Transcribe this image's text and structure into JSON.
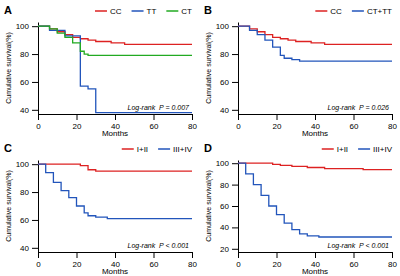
{
  "chart_data": [
    {
      "type": "step",
      "title": "A",
      "xlabel": "Months",
      "ylabel": "Cumulative survival(%)",
      "annotations": [
        "Log-rank  P = 0.007"
      ],
      "xlim": [
        0,
        80
      ],
      "ylim": [
        37,
        103
      ],
      "xticks": [
        0,
        20,
        40,
        60,
        80
      ],
      "yticks": [
        40,
        60,
        80,
        100
      ],
      "grid": false,
      "legend": "top",
      "series": [
        {
          "name": "CC",
          "color": "#dd2222",
          "x": [
            0,
            6,
            10,
            14,
            18,
            22,
            26,
            30,
            34,
            38,
            45,
            55,
            65,
            80
          ],
          "values": [
            100,
            98,
            96,
            94,
            92,
            91,
            90,
            89,
            89,
            88,
            87,
            87,
            87,
            87
          ]
        },
        {
          "name": "TT",
          "color": "#2255bb",
          "x": [
            0,
            6,
            14,
            22,
            26,
            30,
            35,
            42,
            80
          ],
          "values": [
            100,
            97,
            93,
            57,
            55,
            38,
            38,
            38,
            38
          ]
        },
        {
          "name": "CT",
          "color": "#22aa22",
          "x": [
            0,
            6,
            10,
            14,
            18,
            22,
            24,
            26,
            34,
            80
          ],
          "values": [
            100,
            98,
            95,
            92,
            88,
            82,
            80,
            79,
            79,
            79
          ]
        }
      ]
    },
    {
      "type": "step",
      "title": "B",
      "xlabel": "Months",
      "ylabel": "Cumulative survival(%)",
      "annotations": [
        "Log-rank  P = 0.026"
      ],
      "xlim": [
        0,
        80
      ],
      "ylim": [
        37,
        103
      ],
      "xticks": [
        0,
        20,
        40,
        60,
        80
      ],
      "yticks": [
        40,
        60,
        80,
        100
      ],
      "grid": false,
      "legend": "top",
      "series": [
        {
          "name": "CC",
          "color": "#dd2222",
          "x": [
            0,
            6,
            10,
            14,
            18,
            22,
            26,
            30,
            34,
            38,
            45,
            55,
            65,
            80
          ],
          "values": [
            100,
            98,
            96,
            94,
            92,
            91,
            90,
            89,
            89,
            88,
            87,
            87,
            87,
            87
          ]
        },
        {
          "name": "CT+TT",
          "color": "#2255bb",
          "x": [
            0,
            6,
            10,
            14,
            18,
            22,
            24,
            28,
            32,
            36,
            42,
            80
          ],
          "values": [
            100,
            97,
            94,
            90,
            85,
            79,
            77,
            76,
            75,
            75,
            75,
            75
          ]
        }
      ]
    },
    {
      "type": "step",
      "title": "C",
      "xlabel": "Months",
      "ylabel": "Cumulative survival(%)",
      "annotations": [
        "Log-rank  P < 0.001"
      ],
      "xlim": [
        0,
        80
      ],
      "ylim": [
        37,
        103
      ],
      "xticks": [
        0,
        20,
        40,
        60,
        80
      ],
      "yticks": [
        40,
        60,
        80,
        100
      ],
      "grid": false,
      "legend": "top",
      "series": [
        {
          "name": "I+II",
          "color": "#dd2222",
          "x": [
            0,
            10,
            22,
            26,
            30,
            38,
            80
          ],
          "values": [
            100,
            100,
            99,
            96,
            95,
            95,
            95
          ]
        },
        {
          "name": "III+IV",
          "color": "#2255bb",
          "x": [
            0,
            4,
            8,
            12,
            16,
            20,
            24,
            26,
            30,
            36,
            42,
            80
          ],
          "values": [
            100,
            94,
            87,
            81,
            76,
            70,
            65,
            63,
            62,
            61,
            61,
            61
          ]
        }
      ]
    },
    {
      "type": "step",
      "title": "D",
      "xlabel": "Months",
      "ylabel": "Cumulative survival(%)",
      "annotations": [
        "Log-rank  P < 0.001"
      ],
      "xlim": [
        0,
        80
      ],
      "ylim": [
        17,
        103
      ],
      "xticks": [
        0,
        20,
        40,
        60,
        80
      ],
      "yticks": [
        20,
        40,
        60,
        80,
        100
      ],
      "grid": false,
      "legend": "top",
      "series": [
        {
          "name": "I+II",
          "color": "#dd2222",
          "x": [
            0,
            10,
            18,
            22,
            28,
            36,
            45,
            55,
            65,
            80
          ],
          "values": [
            100,
            100,
            99,
            98,
            97,
            96,
            95,
            95,
            94,
            94
          ]
        },
        {
          "name": "III+IV",
          "color": "#2255bb",
          "x": [
            0,
            4,
            8,
            12,
            16,
            20,
            24,
            28,
            32,
            36,
            42,
            80
          ],
          "values": [
            100,
            90,
            80,
            70,
            60,
            52,
            44,
            38,
            34,
            32,
            31,
            31
          ]
        }
      ]
    }
  ]
}
